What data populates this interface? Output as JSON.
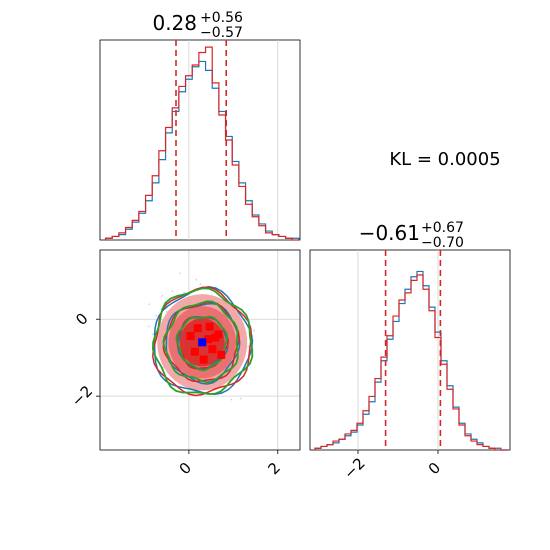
{
  "annotation": "KL = 0.0005",
  "param1": {
    "median": "0.28",
    "plus": "+0.56",
    "minus": "−0.57"
  },
  "param2": {
    "median": "−0.61",
    "plus": "+0.67",
    "minus": "−0.70"
  },
  "colors": {
    "blue": "#1f77b4",
    "red": "#d62728",
    "green": "#2ca02c"
  },
  "chart_data": [
    {
      "type": "histogram",
      "panel": "top-left",
      "title": "0.28 +0.56 −0.57",
      "xlim": [
        -2.0,
        2.5
      ],
      "quantiles": [
        -0.29,
        0.28,
        0.84
      ],
      "bin_centers": [
        -1.8,
        -1.65,
        -1.5,
        -1.35,
        -1.2,
        -1.05,
        -0.9,
        -0.75,
        -0.6,
        -0.45,
        -0.3,
        -0.15,
        0.0,
        0.15,
        0.3,
        0.45,
        0.6,
        0.75,
        0.9,
        1.05,
        1.2,
        1.35,
        1.5,
        1.65,
        1.8,
        1.95,
        2.1,
        2.25,
        2.4
      ],
      "series": [
        {
          "color": "#1f77b4",
          "values": [
            0.01,
            0.02,
            0.03,
            0.06,
            0.1,
            0.15,
            0.22,
            0.32,
            0.45,
            0.6,
            0.72,
            0.83,
            0.9,
            0.97,
            1.0,
            0.95,
            0.85,
            0.72,
            0.58,
            0.44,
            0.32,
            0.22,
            0.14,
            0.09,
            0.05,
            0.03,
            0.02,
            0.01,
            0.01
          ]
        },
        {
          "color": "#d62728",
          "values": [
            0.01,
            0.02,
            0.04,
            0.07,
            0.11,
            0.16,
            0.25,
            0.36,
            0.5,
            0.63,
            0.74,
            0.86,
            0.92,
            0.98,
            1.05,
            1.08,
            0.88,
            0.7,
            0.56,
            0.42,
            0.3,
            0.2,
            0.13,
            0.08,
            0.04,
            0.03,
            0.02,
            0.01,
            0.0
          ]
        }
      ]
    },
    {
      "type": "histogram",
      "panel": "bottom-right",
      "title": "−0.61 +0.67 −0.70",
      "xlim": [
        -3.2,
        1.8
      ],
      "xticks": [
        -2,
        0
      ],
      "quantiles": [
        -1.31,
        -0.61,
        0.06
      ],
      "bin_centers": [
        -3.0,
        -2.85,
        -2.7,
        -2.55,
        -2.4,
        -2.25,
        -2.1,
        -1.95,
        -1.8,
        -1.65,
        -1.5,
        -1.35,
        -1.2,
        -1.05,
        -0.9,
        -0.75,
        -0.6,
        -0.45,
        -0.3,
        -0.15,
        0.0,
        0.15,
        0.3,
        0.45,
        0.6,
        0.75,
        0.9,
        1.05,
        1.2,
        1.35,
        1.5,
        1.65
      ],
      "series": [
        {
          "color": "#1f77b4",
          "values": [
            0.01,
            0.02,
            0.03,
            0.04,
            0.06,
            0.08,
            0.1,
            0.14,
            0.2,
            0.27,
            0.38,
            0.5,
            0.62,
            0.72,
            0.82,
            0.9,
            0.97,
            1.0,
            0.92,
            0.8,
            0.66,
            0.5,
            0.36,
            0.24,
            0.15,
            0.09,
            0.06,
            0.04,
            0.02,
            0.01,
            0.01,
            0.0
          ]
        },
        {
          "color": "#d62728",
          "values": [
            0.01,
            0.02,
            0.03,
            0.05,
            0.06,
            0.09,
            0.11,
            0.15,
            0.22,
            0.3,
            0.4,
            0.52,
            0.64,
            0.75,
            0.84,
            0.88,
            0.95,
            0.98,
            0.9,
            0.78,
            0.63,
            0.48,
            0.34,
            0.23,
            0.14,
            0.08,
            0.05,
            0.03,
            0.02,
            0.01,
            0.0,
            0.0
          ]
        }
      ]
    },
    {
      "type": "contour",
      "panel": "bottom-left",
      "xlim": [
        -2.0,
        2.5
      ],
      "ylim": [
        -3.4,
        1.8
      ],
      "xticks": [
        0,
        2
      ],
      "yticks": [
        0,
        -2
      ],
      "center": [
        0.3,
        -0.6
      ],
      "sigma": [
        0.55,
        0.68
      ],
      "levels_sigma": [
        1.0,
        1.5,
        2.0
      ],
      "series": [
        {
          "color": "#1f77b4"
        },
        {
          "color": "#d62728"
        },
        {
          "color": "#2ca02c"
        }
      ]
    }
  ]
}
